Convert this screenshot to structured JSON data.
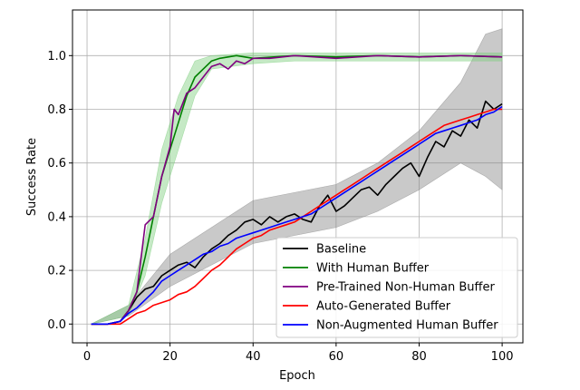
{
  "chart_data": {
    "type": "line",
    "title": "",
    "xlabel": "Epoch",
    "ylabel": "Success Rate",
    "xlim": [
      -3.5,
      105
    ],
    "ylim": [
      -0.07,
      1.17
    ],
    "xticks": [
      0,
      20,
      40,
      60,
      80,
      100
    ],
    "yticks": [
      0.0,
      0.2,
      0.4,
      0.6,
      0.8,
      1.0
    ],
    "xtick_labels": [
      "0",
      "20",
      "40",
      "60",
      "80",
      "100"
    ],
    "ytick_labels": [
      "0.0",
      "0.2",
      "0.4",
      "0.6",
      "0.8",
      "1.0"
    ],
    "grid": true,
    "legend_position": "lower-right",
    "series": [
      {
        "name": "Baseline",
        "color": "#000000",
        "band_color": "#888888",
        "points": [
          [
            1,
            0.0
          ],
          [
            5,
            0.0
          ],
          [
            8,
            0.01
          ],
          [
            10,
            0.05
          ],
          [
            12,
            0.1
          ],
          [
            14,
            0.13
          ],
          [
            16,
            0.14
          ],
          [
            18,
            0.18
          ],
          [
            20,
            0.2
          ],
          [
            22,
            0.22
          ],
          [
            24,
            0.23
          ],
          [
            26,
            0.21
          ],
          [
            28,
            0.25
          ],
          [
            30,
            0.28
          ],
          [
            32,
            0.3
          ],
          [
            34,
            0.33
          ],
          [
            36,
            0.35
          ],
          [
            38,
            0.38
          ],
          [
            40,
            0.39
          ],
          [
            42,
            0.37
          ],
          [
            44,
            0.4
          ],
          [
            46,
            0.38
          ],
          [
            48,
            0.4
          ],
          [
            50,
            0.41
          ],
          [
            52,
            0.39
          ],
          [
            54,
            0.38
          ],
          [
            56,
            0.44
          ],
          [
            58,
            0.48
          ],
          [
            60,
            0.42
          ],
          [
            62,
            0.44
          ],
          [
            64,
            0.47
          ],
          [
            66,
            0.5
          ],
          [
            68,
            0.51
          ],
          [
            70,
            0.48
          ],
          [
            72,
            0.52
          ],
          [
            74,
            0.55
          ],
          [
            76,
            0.58
          ],
          [
            78,
            0.6
          ],
          [
            80,
            0.55
          ],
          [
            82,
            0.62
          ],
          [
            84,
            0.68
          ],
          [
            86,
            0.66
          ],
          [
            88,
            0.72
          ],
          [
            90,
            0.7
          ],
          [
            92,
            0.76
          ],
          [
            94,
            0.73
          ],
          [
            96,
            0.83
          ],
          [
            98,
            0.8
          ],
          [
            100,
            0.82
          ]
        ],
        "band": [
          [
            1,
            0.0,
            0.0
          ],
          [
            10,
            0.03,
            0.07
          ],
          [
            20,
            0.14,
            0.26
          ],
          [
            30,
            0.22,
            0.36
          ],
          [
            40,
            0.3,
            0.46
          ],
          [
            50,
            0.33,
            0.49
          ],
          [
            60,
            0.36,
            0.52
          ],
          [
            70,
            0.42,
            0.6
          ],
          [
            80,
            0.5,
            0.72
          ],
          [
            90,
            0.6,
            0.9
          ],
          [
            96,
            0.55,
            1.08
          ],
          [
            100,
            0.5,
            1.1
          ]
        ]
      },
      {
        "name": "With Human Buffer",
        "color": "#008000",
        "band_color": "#7fcf7f",
        "points": [
          [
            1,
            0.0
          ],
          [
            5,
            0.0
          ],
          [
            8,
            0.01
          ],
          [
            10,
            0.05
          ],
          [
            12,
            0.12
          ],
          [
            14,
            0.25
          ],
          [
            16,
            0.4
          ],
          [
            18,
            0.55
          ],
          [
            20,
            0.65
          ],
          [
            22,
            0.75
          ],
          [
            24,
            0.85
          ],
          [
            26,
            0.92
          ],
          [
            28,
            0.95
          ],
          [
            30,
            0.98
          ],
          [
            32,
            0.99
          ],
          [
            34,
            0.995
          ],
          [
            36,
            1.0
          ],
          [
            40,
            0.99
          ],
          [
            50,
            1.0
          ],
          [
            60,
            0.995
          ],
          [
            70,
            1.0
          ],
          [
            80,
            0.995
          ],
          [
            90,
            1.0
          ],
          [
            100,
            0.995
          ]
        ],
        "band": [
          [
            1,
            0.0,
            0.0
          ],
          [
            10,
            0.03,
            0.07
          ],
          [
            14,
            0.18,
            0.32
          ],
          [
            18,
            0.45,
            0.65
          ],
          [
            22,
            0.65,
            0.85
          ],
          [
            26,
            0.85,
            0.98
          ],
          [
            30,
            0.95,
            1.0
          ],
          [
            40,
            0.97,
            1.01
          ],
          [
            50,
            0.98,
            1.01
          ],
          [
            70,
            0.98,
            1.01
          ],
          [
            100,
            0.98,
            1.01
          ]
        ]
      },
      {
        "name": "Pre-Trained Non-Human Buffer",
        "color": "#800080",
        "band_color": "#cc99cc",
        "points": [
          [
            1,
            0.0
          ],
          [
            5,
            0.0
          ],
          [
            8,
            0.01
          ],
          [
            10,
            0.05
          ],
          [
            12,
            0.12
          ],
          [
            14,
            0.37
          ],
          [
            16,
            0.4
          ],
          [
            18,
            0.55
          ],
          [
            20,
            0.66
          ],
          [
            21,
            0.8
          ],
          [
            22,
            0.78
          ],
          [
            24,
            0.86
          ],
          [
            26,
            0.88
          ],
          [
            28,
            0.92
          ],
          [
            30,
            0.96
          ],
          [
            32,
            0.97
          ],
          [
            34,
            0.95
          ],
          [
            36,
            0.98
          ],
          [
            38,
            0.97
          ],
          [
            40,
            0.99
          ],
          [
            44,
            0.99
          ],
          [
            50,
            1.0
          ],
          [
            60,
            0.99
          ],
          [
            70,
            1.0
          ],
          [
            80,
            0.995
          ],
          [
            90,
            1.0
          ],
          [
            100,
            0.995
          ]
        ],
        "band": [
          [
            1,
            0.0,
            0.0
          ],
          [
            100,
            0.0,
            0.0
          ]
        ]
      },
      {
        "name": "Auto-Generated Buffer",
        "color": "#ff0000",
        "band_color": "#ff9999",
        "points": [
          [
            1,
            0.0
          ],
          [
            5,
            0.0
          ],
          [
            8,
            0.0
          ],
          [
            10,
            0.02
          ],
          [
            12,
            0.04
          ],
          [
            14,
            0.05
          ],
          [
            16,
            0.07
          ],
          [
            18,
            0.08
          ],
          [
            20,
            0.09
          ],
          [
            22,
            0.11
          ],
          [
            24,
            0.12
          ],
          [
            26,
            0.14
          ],
          [
            28,
            0.17
          ],
          [
            30,
            0.2
          ],
          [
            32,
            0.22
          ],
          [
            34,
            0.25
          ],
          [
            36,
            0.28
          ],
          [
            38,
            0.3
          ],
          [
            40,
            0.32
          ],
          [
            42,
            0.33
          ],
          [
            44,
            0.35
          ],
          [
            46,
            0.36
          ],
          [
            48,
            0.37
          ],
          [
            50,
            0.38
          ],
          [
            52,
            0.4
          ],
          [
            54,
            0.42
          ],
          [
            56,
            0.44
          ],
          [
            58,
            0.46
          ],
          [
            60,
            0.48
          ],
          [
            62,
            0.5
          ],
          [
            64,
            0.52
          ],
          [
            66,
            0.54
          ],
          [
            68,
            0.56
          ],
          [
            70,
            0.58
          ],
          [
            72,
            0.6
          ],
          [
            74,
            0.62
          ],
          [
            76,
            0.64
          ],
          [
            78,
            0.66
          ],
          [
            80,
            0.68
          ],
          [
            82,
            0.7
          ],
          [
            84,
            0.72
          ],
          [
            86,
            0.74
          ],
          [
            88,
            0.75
          ],
          [
            90,
            0.76
          ],
          [
            92,
            0.77
          ],
          [
            94,
            0.78
          ],
          [
            96,
            0.79
          ],
          [
            98,
            0.8
          ],
          [
            100,
            0.8
          ]
        ],
        "band": [
          [
            1,
            0.0,
            0.0
          ],
          [
            100,
            0.0,
            0.0
          ]
        ]
      },
      {
        "name": "Non-Augmented Human Buffer",
        "color": "#0000ff",
        "band_color": "#9999ff",
        "points": [
          [
            1,
            0.0
          ],
          [
            5,
            0.0
          ],
          [
            8,
            0.01
          ],
          [
            10,
            0.04
          ],
          [
            12,
            0.06
          ],
          [
            14,
            0.09
          ],
          [
            16,
            0.12
          ],
          [
            18,
            0.16
          ],
          [
            20,
            0.18
          ],
          [
            22,
            0.2
          ],
          [
            24,
            0.22
          ],
          [
            26,
            0.24
          ],
          [
            28,
            0.26
          ],
          [
            30,
            0.27
          ],
          [
            32,
            0.29
          ],
          [
            34,
            0.3
          ],
          [
            36,
            0.32
          ],
          [
            38,
            0.33
          ],
          [
            40,
            0.34
          ],
          [
            42,
            0.35
          ],
          [
            44,
            0.36
          ],
          [
            46,
            0.37
          ],
          [
            48,
            0.38
          ],
          [
            50,
            0.39
          ],
          [
            52,
            0.4
          ],
          [
            54,
            0.41
          ],
          [
            56,
            0.43
          ],
          [
            58,
            0.45
          ],
          [
            60,
            0.47
          ],
          [
            62,
            0.49
          ],
          [
            64,
            0.51
          ],
          [
            66,
            0.53
          ],
          [
            68,
            0.55
          ],
          [
            70,
            0.57
          ],
          [
            72,
            0.59
          ],
          [
            74,
            0.61
          ],
          [
            76,
            0.63
          ],
          [
            78,
            0.65
          ],
          [
            80,
            0.67
          ],
          [
            82,
            0.69
          ],
          [
            84,
            0.71
          ],
          [
            86,
            0.72
          ],
          [
            88,
            0.73
          ],
          [
            90,
            0.74
          ],
          [
            92,
            0.75
          ],
          [
            94,
            0.76
          ],
          [
            96,
            0.78
          ],
          [
            98,
            0.79
          ],
          [
            100,
            0.81
          ]
        ],
        "band": [
          [
            1,
            0.0,
            0.0
          ],
          [
            100,
            0.0,
            0.0
          ]
        ]
      }
    ]
  }
}
